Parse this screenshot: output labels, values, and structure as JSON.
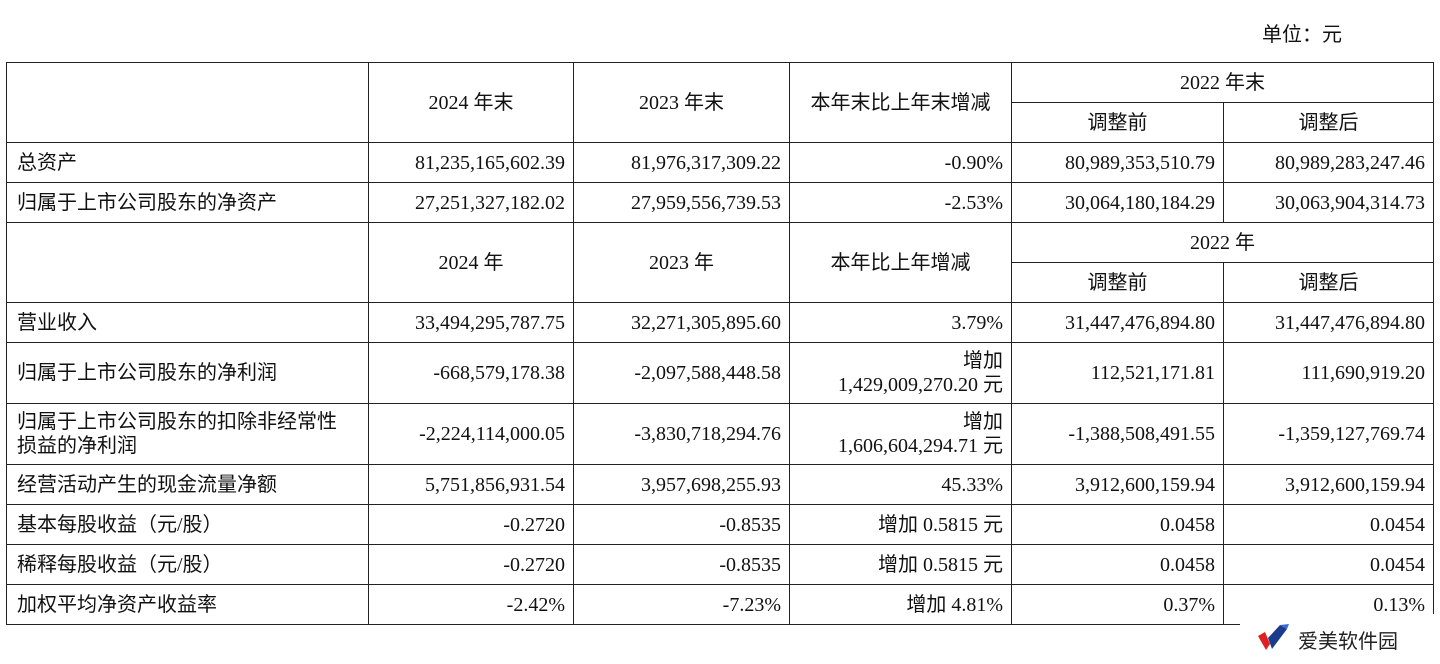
{
  "unit_label": "单位：元",
  "header1": {
    "c2024": "2024 年末",
    "c2023": "2023 年末",
    "change": "本年末比上年末增减",
    "c2022": "2022 年末",
    "before": "调整前",
    "after": "调整后"
  },
  "balance_rows": [
    {
      "label": "总资产",
      "v2024": "81,235,165,602.39",
      "v2023": "81,976,317,309.22",
      "change": "-0.90%",
      "before": "80,989,353,510.79",
      "after": "80,989,283,247.46"
    },
    {
      "label": "归属于上市公司股东的净资产",
      "v2024": "27,251,327,182.02",
      "v2023": "27,959,556,739.53",
      "change": "-2.53%",
      "before": "30,064,180,184.29",
      "after": "30,063,904,314.73"
    }
  ],
  "header2": {
    "c2024": "2024 年",
    "c2023": "2023 年",
    "change": "本年比上年增减",
    "c2022": "2022 年",
    "before": "调整前",
    "after": "调整后"
  },
  "income_rows": [
    {
      "label": "营业收入",
      "v2024": "33,494,295,787.75",
      "v2023": "32,271,305,895.60",
      "change_l1": "3.79%",
      "change_l2": "",
      "before": "31,447,476,894.80",
      "after": "31,447,476,894.80"
    },
    {
      "label": "归属于上市公司股东的净利润",
      "v2024": "-668,579,178.38",
      "v2023": "-2,097,588,448.58",
      "change_l1": "增加",
      "change_l2": "1,429,009,270.20 元",
      "before": "112,521,171.81",
      "after": "111,690,919.20"
    },
    {
      "label": "归属于上市公司股东的扣除非经常性损益的净利润",
      "v2024": "-2,224,114,000.05",
      "v2023": "-3,830,718,294.76",
      "change_l1": "增加",
      "change_l2": "1,606,604,294.71 元",
      "before": "-1,388,508,491.55",
      "after": "-1,359,127,769.74"
    },
    {
      "label": "经营活动产生的现金流量净额",
      "v2024": "5,751,856,931.54",
      "v2023": "3,957,698,255.93",
      "change_l1": "45.33%",
      "change_l2": "",
      "before": "3,912,600,159.94",
      "after": "3,912,600,159.94"
    },
    {
      "label": "基本每股收益（元/股）",
      "v2024": "-0.2720",
      "v2023": "-0.8535",
      "change_l1": "增加 0.5815 元",
      "change_l2": "",
      "before": "0.0458",
      "after": "0.0454"
    },
    {
      "label": "稀释每股收益（元/股）",
      "v2024": "-0.2720",
      "v2023": "-0.8535",
      "change_l1": "增加 0.5815 元",
      "change_l2": "",
      "before": "0.0458",
      "after": "0.0454"
    },
    {
      "label": "加权平均净资产收益率",
      "v2024": "-2.42%",
      "v2023": "-7.23%",
      "change_l1": "增加 4.81%",
      "change_l2": "",
      "before": "0.37%",
      "after": "0.13%"
    }
  ],
  "watermark": {
    "text": "爱美软件园",
    "icon": "brand-logo-icon",
    "colors": [
      "#e02020",
      "#1a3c8c"
    ]
  }
}
